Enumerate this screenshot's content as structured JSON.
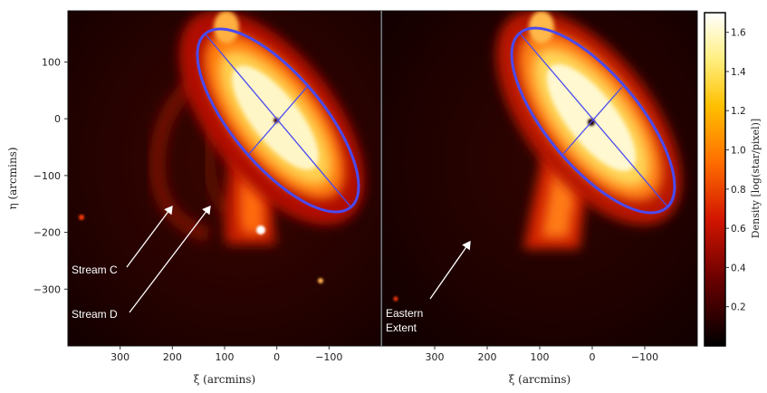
{
  "chart_data": {
    "type": "heatmap",
    "panels": [
      {
        "id": "left",
        "xlabel": "ξ (arcmins)",
        "ylabel": "η (arcmins)",
        "xlim": [
          400,
          -200
        ],
        "ylim": [
          -400,
          190
        ],
        "xticks": [
          300,
          200,
          100,
          0,
          -100
        ],
        "xtick_labels": [
          "300",
          "200",
          "100",
          "0",
          "−100"
        ],
        "yticks": [
          100,
          0,
          -100,
          -200,
          -300
        ],
        "ytick_labels": [
          "100",
          "0",
          "−100",
          "−200",
          "−300"
        ],
        "annotations": [
          {
            "label": "Stream C",
            "text_at": [
              185,
              -262
            ],
            "arrow_to": [
              200,
              -158
            ]
          },
          {
            "label": "Stream D",
            "text_at": [
              185,
              -330
            ],
            "arrow_to": [
              118,
              -158
            ]
          }
        ],
        "ellipse": {
          "center": [
            0,
            0
          ],
          "semi_major": 170,
          "semi_minor": 60,
          "pa_deg": 38
        }
      },
      {
        "id": "right",
        "xlabel": "ξ (arcmins)",
        "xlim": [
          400,
          -200
        ],
        "ylim": [
          -400,
          190
        ],
        "xticks": [
          300,
          200,
          100,
          0,
          -100
        ],
        "xtick_labels": [
          "300",
          "200",
          "100",
          "0",
          "−100"
        ],
        "annotations": [
          {
            "label": "Eastern\nExtent",
            "text_at": [
              340,
              -330
            ],
            "arrow_to": [
              230,
              -230
            ]
          }
        ],
        "ellipse": {
          "center": [
            0,
            0
          ],
          "semi_major": 170,
          "semi_minor": 60,
          "pa_deg": 38
        }
      }
    ],
    "colorbar": {
      "label": "Density [log(star/pixel)]",
      "range": [
        0,
        1.7
      ],
      "ticks": [
        0.2,
        0.4,
        0.6,
        0.8,
        1.0,
        1.2,
        1.4,
        1.6
      ],
      "tick_labels": [
        "0.2",
        "0.4",
        "0.6",
        "0.8",
        "1.0",
        "1.2",
        "1.4",
        "1.6"
      ],
      "colormap": "hot"
    }
  },
  "labels": {
    "stream_c": "Stream C",
    "stream_d": "Stream D",
    "eastern_1": "Eastern",
    "eastern_2": "Extent",
    "xi_label": "ξ (arcmins)",
    "eta_label": "η (arcmins)",
    "cbar_label": "Density [log(star/pixel)]"
  },
  "colors": {
    "ellipse": "#4a4af0",
    "background": "#1a0000",
    "arrow": "#ffffff"
  }
}
